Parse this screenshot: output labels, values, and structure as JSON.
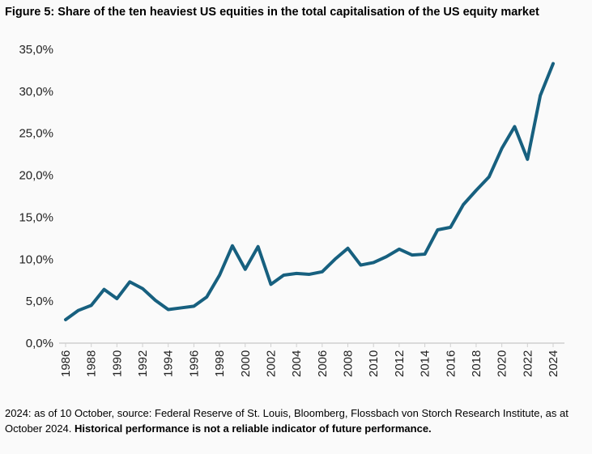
{
  "title": "Figure 5: Share of the ten heaviest US equities in the total capitalisation of the US equity market",
  "footnote": {
    "text": "2024: as of 10 October, source: Federal Reserve of St. Louis, Bloomberg, Flossbach von Storch Research Institute, as at October 2024. ",
    "bold": "Historical performance is not a reliable indicator of future performance."
  },
  "colors": {
    "line": "#17607f",
    "axis": "#d0d0d0",
    "background": "#fafafa"
  },
  "chart_data": {
    "type": "line",
    "title": "Figure 5: Share of the ten heaviest US equities in the total capitalisation of the US equity market",
    "xlabel": "",
    "ylabel": "",
    "ylim": [
      0,
      35
    ],
    "yticks": [
      "0,0%",
      "5,0%",
      "10,0%",
      "15,0%",
      "20,0%",
      "25,0%",
      "30,0%",
      "35,0%"
    ],
    "xticks": [
      "1986",
      "1988",
      "1990",
      "1992",
      "1994",
      "1996",
      "1998",
      "2000",
      "2002",
      "2004",
      "2006",
      "2008",
      "2010",
      "2012",
      "2014",
      "2016",
      "2018",
      "2020",
      "2022",
      "2024"
    ],
    "grid": false,
    "x": [
      1986,
      1987,
      1988,
      1989,
      1990,
      1991,
      1992,
      1993,
      1994,
      1995,
      1996,
      1997,
      1998,
      1999,
      2000,
      2001,
      2002,
      2003,
      2004,
      2005,
      2006,
      2007,
      2008,
      2009,
      2010,
      2011,
      2012,
      2013,
      2014,
      2015,
      2016,
      2017,
      2018,
      2019,
      2020,
      2021,
      2022,
      2023,
      2024
    ],
    "y": [
      2.8,
      3.9,
      4.5,
      6.4,
      5.3,
      7.3,
      6.5,
      5.1,
      4.0,
      4.2,
      4.4,
      5.5,
      8.1,
      11.6,
      8.8,
      11.5,
      7.0,
      8.1,
      8.3,
      8.2,
      8.5,
      10.0,
      11.3,
      9.3,
      9.6,
      10.3,
      11.2,
      10.5,
      10.6,
      13.5,
      13.8,
      16.5,
      18.2,
      19.8,
      23.2,
      25.8,
      21.9,
      29.5,
      33.3
    ]
  }
}
